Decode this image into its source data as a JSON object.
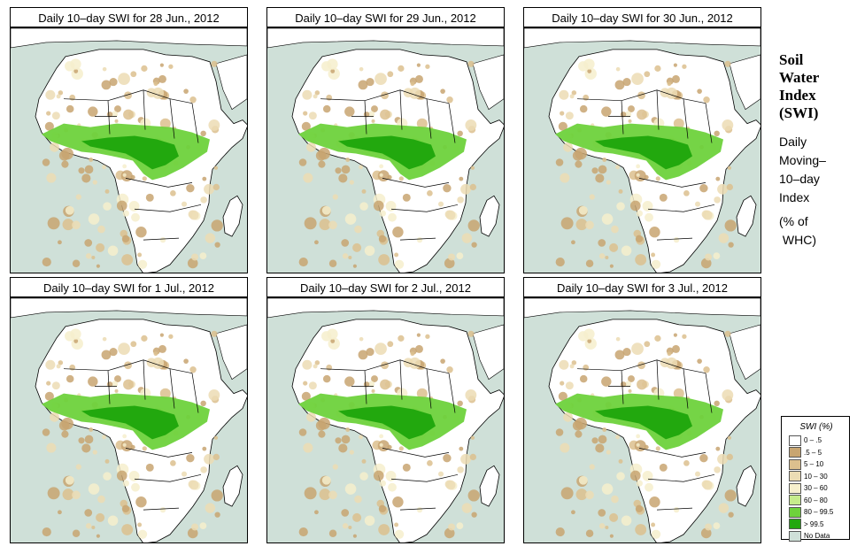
{
  "panels": [
    {
      "title": "Daily 10–day SWI for  28 Jun., 2012"
    },
    {
      "title": "Daily 10–day SWI for  29 Jun., 2012"
    },
    {
      "title": "Daily 10–day SWI for  30 Jun., 2012"
    },
    {
      "title": "Daily 10–day SWI for  1 Jul., 2012"
    },
    {
      "title": "Daily 10–day SWI for  2 Jul., 2012"
    },
    {
      "title": "Daily 10–day SWI for  3 Jul., 2012"
    }
  ],
  "sidebar": {
    "title_lines": [
      "Soil",
      "Water",
      "Index",
      "(SWI)"
    ],
    "desc_lines": [
      "Daily",
      "Moving–",
      "10–day",
      "Index"
    ],
    "unit_lines": [
      "(% of",
      " WHC)"
    ]
  },
  "legend": {
    "title": "SWI (%)",
    "items": [
      {
        "label": "0 – .5",
        "color": "#ffffff"
      },
      {
        "label": ".5 – 5",
        "color": "#c8a571"
      },
      {
        "label": "5 – 10",
        "color": "#dcc08e"
      },
      {
        "label": "10 – 30",
        "color": "#ecdcb4"
      },
      {
        "label": "30 – 60",
        "color": "#f6efcc"
      },
      {
        "label": "60 – 80",
        "color": "#c6ec8c"
      },
      {
        "label": "80 – 99.5",
        "color": "#6ed23c"
      },
      {
        "label": "> 99.5",
        "color": "#22a80e"
      },
      {
        "label": "No Data",
        "color": "#cfe0d8"
      }
    ]
  },
  "colors": {
    "ocean": "#cfe0d8",
    "land": "#ffffff",
    "border": "#000000"
  }
}
